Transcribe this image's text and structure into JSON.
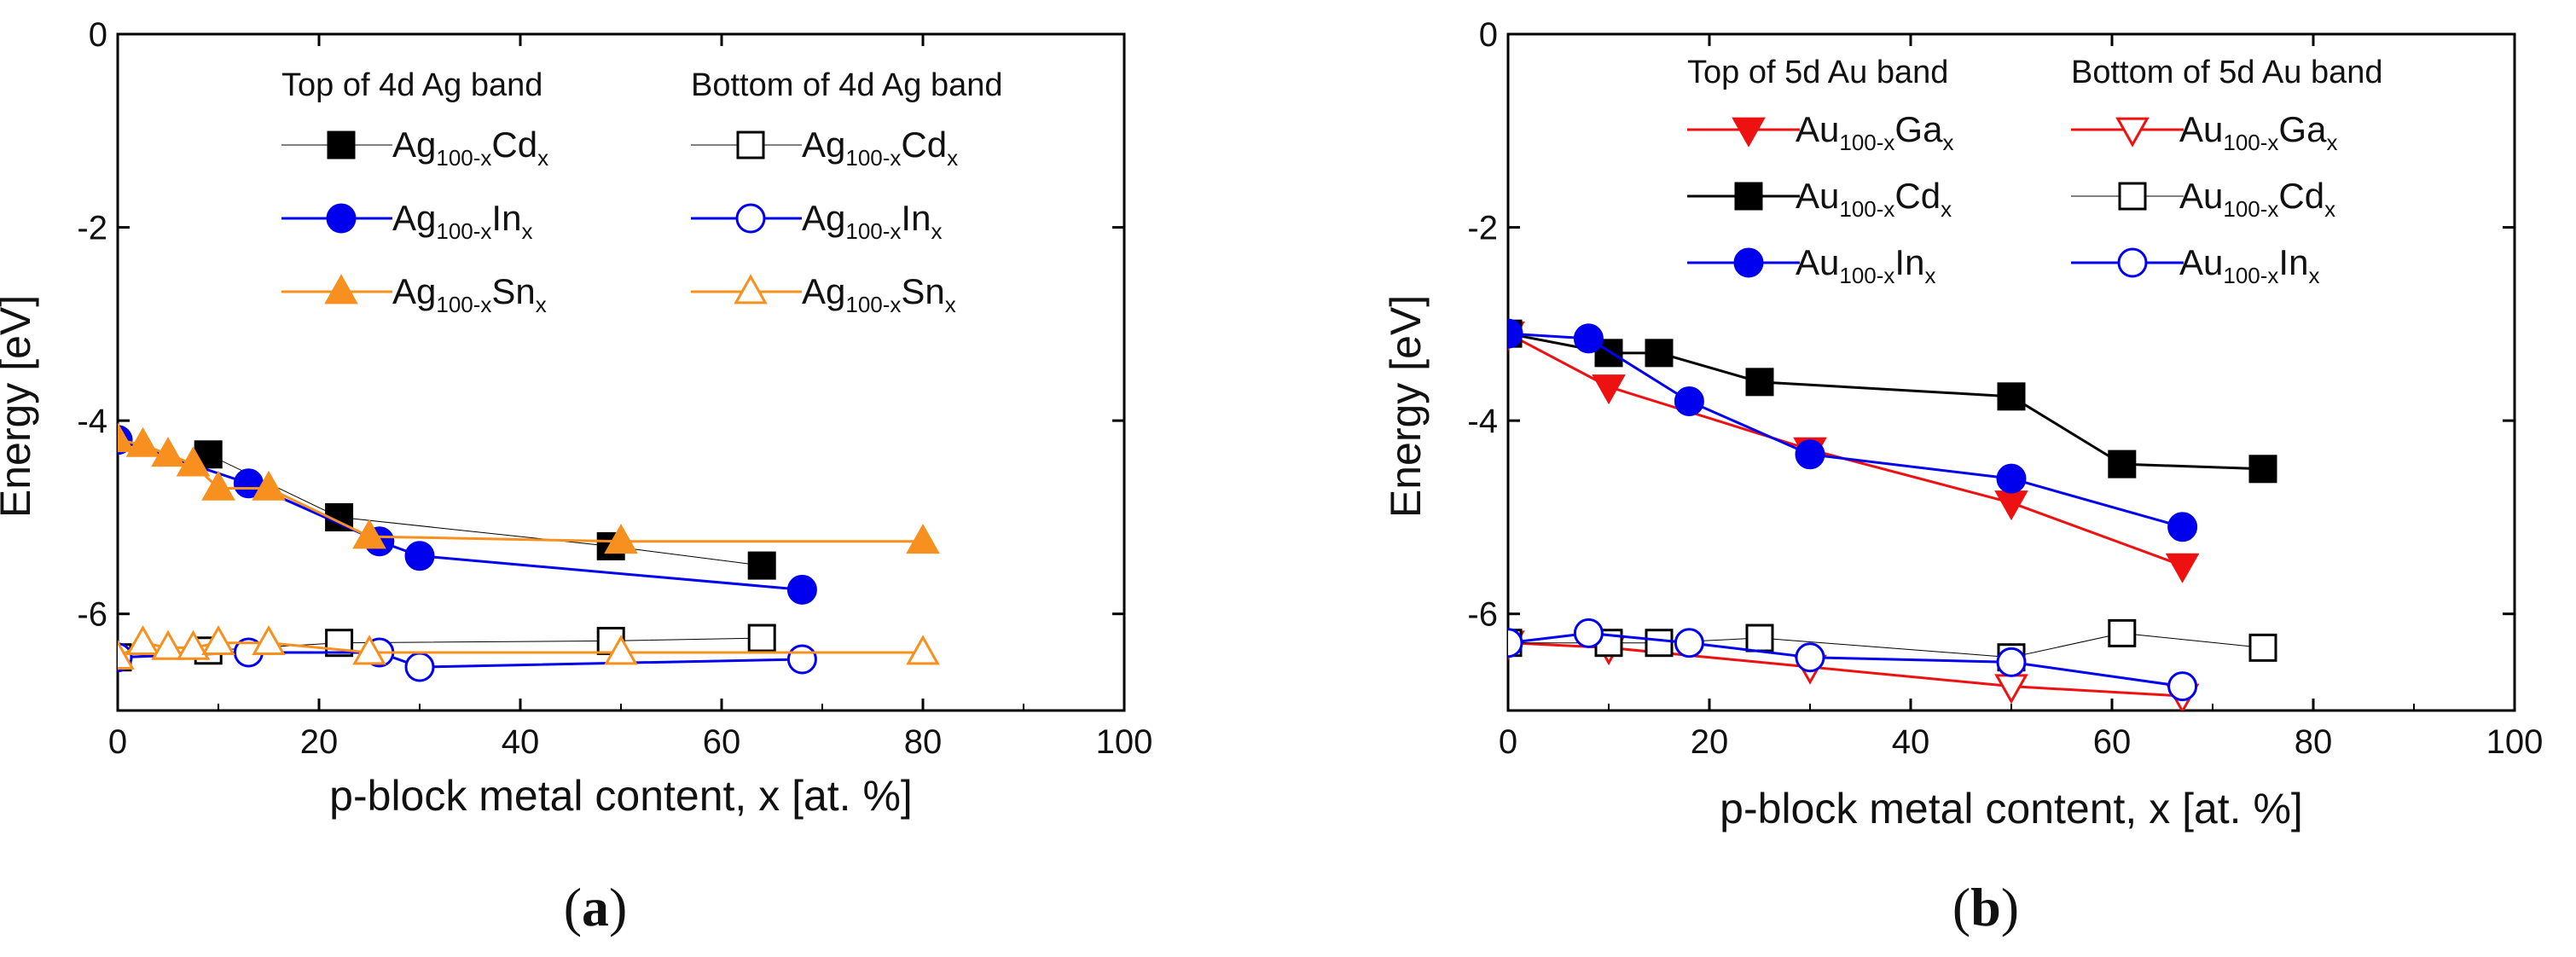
{
  "chart_data": [
    {
      "panel": "a",
      "panel_label": "a",
      "type": "line",
      "xlabel": "p-block metal content, x [at. %]",
      "ylabel": "Energy [eV]",
      "xlim": [
        0,
        100
      ],
      "ylim": [
        -7,
        0
      ],
      "xticks": [
        0,
        20,
        40,
        60,
        80,
        100
      ],
      "yticks": [
        0,
        -2,
        -4,
        -6
      ],
      "legend": {
        "group_titles": [
          "Top of 4d Ag band",
          "Bottom of 4d Ag band"
        ]
      },
      "series": [
        {
          "name": "Ag100-xCdx",
          "base": "Ag",
          "sub1": "100-x",
          "elem": "Cd",
          "sub2": "x",
          "group": "top",
          "color": "#000000",
          "marker": "square",
          "filled": true,
          "line_width": 1,
          "x": [
            9,
            22,
            49,
            64
          ],
          "y": [
            -4.35,
            -5.0,
            -5.3,
            -5.5
          ]
        },
        {
          "name": "Ag100-xInx",
          "base": "Ag",
          "sub1": "100-x",
          "elem": "In",
          "sub2": "x",
          "group": "top",
          "color": "#0000ee",
          "marker": "circle",
          "filled": true,
          "line_width": 3,
          "x": [
            0,
            13,
            26,
            30,
            68
          ],
          "y": [
            -4.2,
            -4.65,
            -5.25,
            -5.4,
            -5.75
          ]
        },
        {
          "name": "Ag100-xSnx",
          "base": "Ag",
          "sub1": "100-x",
          "elem": "Sn",
          "sub2": "x",
          "group": "top",
          "color": "#f7901e",
          "marker": "triangle-up",
          "filled": true,
          "line_width": 3,
          "x": [
            0,
            2.5,
            5,
            7.5,
            10,
            15,
            25,
            50,
            80
          ],
          "y": [
            -4.2,
            -4.25,
            -4.35,
            -4.45,
            -4.7,
            -4.7,
            -5.2,
            -5.25,
            -5.25
          ]
        },
        {
          "name": "Ag100-xCdx",
          "base": "Ag",
          "sub1": "100-x",
          "elem": "Cd",
          "sub2": "x",
          "group": "bottom",
          "color": "#000000",
          "marker": "square",
          "filled": false,
          "line_width": 1,
          "x": [
            0,
            9,
            22,
            49,
            64
          ],
          "y": [
            -6.45,
            -6.38,
            -6.3,
            -6.28,
            -6.25
          ]
        },
        {
          "name": "Ag100-xInx",
          "base": "Ag",
          "sub1": "100-x",
          "elem": "In",
          "sub2": "x",
          "group": "bottom",
          "color": "#0000ee",
          "marker": "circle",
          "filled": false,
          "line_width": 3,
          "x": [
            0,
            13,
            26,
            30,
            68
          ],
          "y": [
            -6.45,
            -6.4,
            -6.4,
            -6.55,
            -6.47
          ]
        },
        {
          "name": "Ag100-xSnx",
          "base": "Ag",
          "sub1": "100-x",
          "elem": "Sn",
          "sub2": "x",
          "group": "bottom",
          "color": "#f7901e",
          "marker": "triangle-up",
          "filled": false,
          "line_width": 3,
          "x": [
            0,
            2.5,
            5,
            7.5,
            10,
            15,
            25,
            50,
            80
          ],
          "y": [
            -6.45,
            -6.3,
            -6.35,
            -6.35,
            -6.3,
            -6.3,
            -6.4,
            -6.4,
            -6.4
          ]
        }
      ]
    },
    {
      "panel": "b",
      "panel_label": "b",
      "type": "line",
      "xlabel": "p-block metal content, x [at. %]",
      "ylabel": "Energy [eV]",
      "xlim": [
        0,
        100
      ],
      "ylim": [
        -7,
        0
      ],
      "xticks": [
        0,
        20,
        40,
        60,
        80,
        100
      ],
      "yticks": [
        0,
        -2,
        -4,
        -6
      ],
      "legend": {
        "group_titles": [
          "Top of 5d Au band",
          "Bottom of 5d Au band"
        ]
      },
      "series": [
        {
          "name": "Au100-xGax",
          "base": "Au",
          "sub1": "100-x",
          "elem": "Ga",
          "sub2": "x",
          "group": "top",
          "color": "#ee1111",
          "marker": "triangle-down",
          "filled": true,
          "line_width": 3,
          "x": [
            0,
            10,
            30,
            50,
            67
          ],
          "y": [
            -3.1,
            -3.65,
            -4.3,
            -4.85,
            -5.5
          ]
        },
        {
          "name": "Au100-xCdx",
          "base": "Au",
          "sub1": "100-x",
          "elem": "Cd",
          "sub2": "x",
          "group": "top",
          "color": "#000000",
          "marker": "square",
          "filled": true,
          "line_width": 3,
          "x": [
            0,
            10,
            15,
            25,
            50,
            61,
            75
          ],
          "y": [
            -3.1,
            -3.3,
            -3.3,
            -3.6,
            -3.75,
            -4.45,
            -4.5
          ]
        },
        {
          "name": "Au100-xInx",
          "base": "Au",
          "sub1": "100-x",
          "elem": "In",
          "sub2": "x",
          "group": "top",
          "color": "#0000ee",
          "marker": "circle",
          "filled": true,
          "line_width": 3,
          "x": [
            0,
            8,
            18,
            30,
            50,
            67
          ],
          "y": [
            -3.1,
            -3.15,
            -3.8,
            -4.35,
            -4.6,
            -5.1
          ]
        },
        {
          "name": "Au100-xGax",
          "base": "Au",
          "sub1": "100-x",
          "elem": "Ga",
          "sub2": "x",
          "group": "bottom",
          "color": "#ee1111",
          "marker": "triangle-down",
          "filled": false,
          "line_width": 3,
          "x": [
            0,
            10,
            30,
            50,
            67
          ],
          "y": [
            -6.3,
            -6.35,
            -6.55,
            -6.75,
            -6.85
          ]
        },
        {
          "name": "Au100-xCdx",
          "base": "Au",
          "sub1": "100-x",
          "elem": "Cd",
          "sub2": "x",
          "group": "bottom",
          "color": "#000000",
          "marker": "square",
          "filled": false,
          "line_width": 1,
          "x": [
            0,
            10,
            15,
            25,
            50,
            61,
            75
          ],
          "y": [
            -6.3,
            -6.3,
            -6.3,
            -6.25,
            -6.45,
            -6.2,
            -6.35
          ]
        },
        {
          "name": "Au100-xInx",
          "base": "Au",
          "sub1": "100-x",
          "elem": "In",
          "sub2": "x",
          "group": "bottom",
          "color": "#0000ee",
          "marker": "circle",
          "filled": false,
          "line_width": 3,
          "x": [
            0,
            8,
            18,
            30,
            50,
            67
          ],
          "y": [
            -6.3,
            -6.2,
            -6.3,
            -6.45,
            -6.5,
            -6.75
          ]
        }
      ]
    }
  ]
}
